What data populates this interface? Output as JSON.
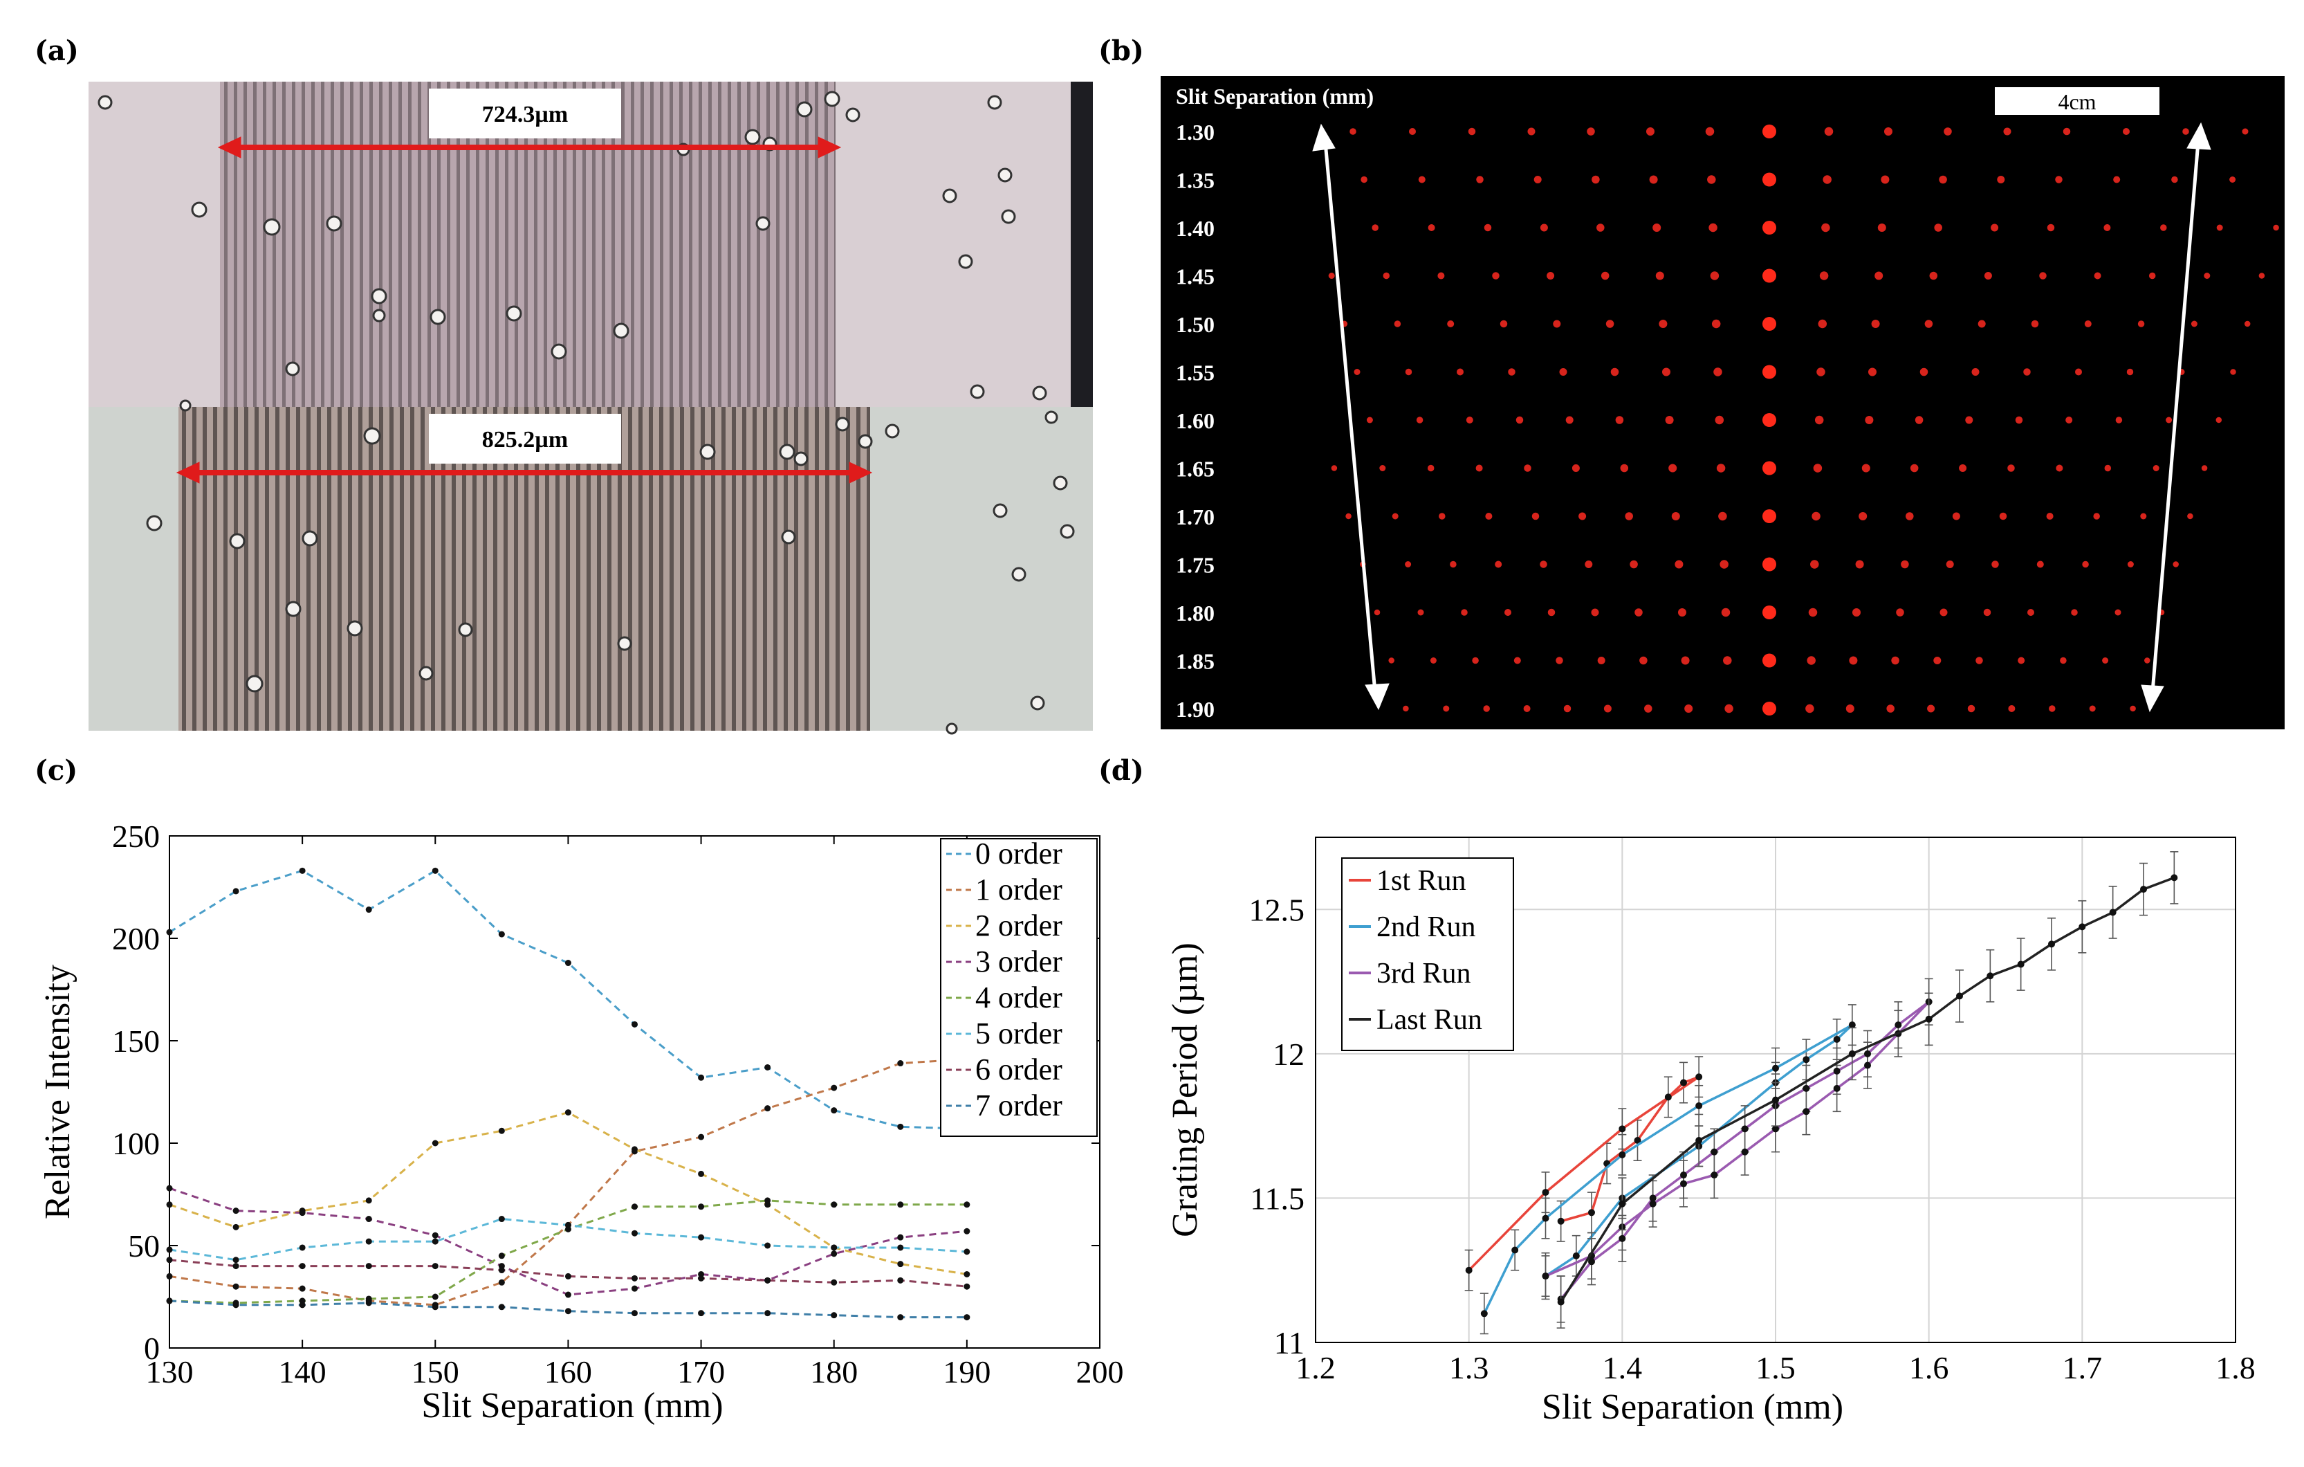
{
  "panels": {
    "a": {
      "label": "(a)",
      "top_measure": "724.3µm",
      "bottom_measure": "825.2µm"
    },
    "b": {
      "label": "(b)",
      "header": "Slit Separation (mm)",
      "scale_bar": "4cm",
      "rows": [
        "1.30",
        "1.35",
        "1.40",
        "1.45",
        "1.50",
        "1.55",
        "1.60",
        "1.65",
        "1.70",
        "1.75",
        "1.80",
        "1.85",
        "1.90"
      ]
    },
    "c": {
      "label": "(c)"
    },
    "d": {
      "label": "(d)"
    }
  },
  "chart_data": [
    {
      "id": "c",
      "type": "line",
      "title": "",
      "xlabel": "Slit Separation (mm)",
      "ylabel": "Relative Intensity",
      "xlim": [
        130,
        200
      ],
      "ylim": [
        0,
        250
      ],
      "xticks": [
        130,
        140,
        150,
        160,
        170,
        180,
        190,
        200
      ],
      "yticks": [
        0,
        50,
        100,
        150,
        200,
        250
      ],
      "x": [
        130,
        135,
        140,
        145,
        150,
        155,
        160,
        165,
        170,
        175,
        180,
        185,
        190
      ],
      "legend_position": "top-right",
      "series": [
        {
          "name": "0 order",
          "color": "#4a9ec9",
          "values": [
            203,
            223,
            233,
            214,
            233,
            202,
            188,
            158,
            132,
            137,
            116,
            108,
            107
          ]
        },
        {
          "name": "1 order",
          "color": "#c0784a",
          "values": [
            35,
            30,
            29,
            23,
            21,
            32,
            60,
            96,
            103,
            117,
            127,
            139,
            141
          ]
        },
        {
          "name": "2 order",
          "color": "#d8b24a",
          "values": [
            70,
            59,
            67,
            72,
            100,
            106,
            115,
            97,
            85,
            70,
            49,
            41,
            36
          ]
        },
        {
          "name": "3 order",
          "color": "#8a3f80",
          "values": [
            78,
            67,
            66,
            63,
            55,
            40,
            26,
            29,
            36,
            33,
            46,
            54,
            57
          ]
        },
        {
          "name": "4 order",
          "color": "#7fa84a",
          "values": [
            23,
            22,
            23,
            24,
            25,
            45,
            58,
            69,
            69,
            72,
            70,
            70,
            70
          ]
        },
        {
          "name": "5 order",
          "color": "#5cb8d8",
          "values": [
            48,
            43,
            49,
            52,
            52,
            63,
            60,
            56,
            54,
            50,
            49,
            49,
            47
          ]
        },
        {
          "name": "6 order",
          "color": "#8a3f58",
          "values": [
            43,
            40,
            40,
            40,
            40,
            38,
            35,
            34,
            34,
            33,
            32,
            33,
            30
          ]
        },
        {
          "name": "7 order",
          "color": "#3f7fa8",
          "values": [
            23,
            21,
            21,
            22,
            20,
            20,
            18,
            17,
            17,
            17,
            16,
            15,
            15
          ]
        }
      ]
    },
    {
      "id": "d",
      "type": "line",
      "title": "",
      "xlabel": "Slit Separation (mm)",
      "ylabel": "Grating Period (µm)",
      "xlim": [
        1.2,
        1.8
      ],
      "ylim": [
        11,
        12.75
      ],
      "xticks": [
        1.2,
        1.3,
        1.4,
        1.5,
        1.6,
        1.7,
        1.8
      ],
      "xtick_labels": [
        "1.2",
        "1.3",
        "1.4",
        "1.5",
        "1.6",
        "1.7",
        "1.8"
      ],
      "yticks": [
        11,
        11.5,
        12,
        12.5
      ],
      "ytick_labels": [
        "11",
        "11.5",
        "12",
        "12.5"
      ],
      "grid": true,
      "legend_position": "top-left",
      "series": [
        {
          "name": "1st Run",
          "color": "#e8443a",
          "error": 0.07,
          "points": [
            [
              1.3,
              11.25
            ],
            [
              1.35,
              11.52
            ],
            [
              1.4,
              11.74
            ],
            [
              1.45,
              11.92
            ],
            [
              1.44,
              11.9
            ],
            [
              1.43,
              11.85
            ],
            [
              1.41,
              11.7
            ],
            [
              1.39,
              11.62
            ],
            [
              1.38,
              11.45
            ],
            [
              1.36,
              11.42
            ]
          ]
        },
        {
          "name": "2nd Run",
          "color": "#3e9fd0",
          "error": 0.07,
          "points": [
            [
              1.31,
              11.1
            ],
            [
              1.33,
              11.32
            ],
            [
              1.35,
              11.43
            ],
            [
              1.4,
              11.65
            ],
            [
              1.45,
              11.82
            ],
            [
              1.5,
              11.95
            ],
            [
              1.55,
              12.1
            ],
            [
              1.54,
              12.05
            ],
            [
              1.52,
              11.98
            ],
            [
              1.5,
              11.9
            ],
            [
              1.45,
              11.68
            ],
            [
              1.4,
              11.5
            ],
            [
              1.37,
              11.3
            ],
            [
              1.35,
              11.23
            ]
          ]
        },
        {
          "name": "3rd Run",
          "color": "#9a5ab0",
          "error": 0.08,
          "points": [
            [
              1.35,
              11.23
            ],
            [
              1.38,
              11.3
            ],
            [
              1.4,
              11.4
            ],
            [
              1.42,
              11.48
            ],
            [
              1.44,
              11.55
            ],
            [
              1.46,
              11.58
            ],
            [
              1.48,
              11.66
            ],
            [
              1.5,
              11.74
            ],
            [
              1.52,
              11.8
            ],
            [
              1.54,
              11.88
            ],
            [
              1.56,
              11.96
            ],
            [
              1.58,
              12.07
            ],
            [
              1.6,
              12.18
            ],
            [
              1.58,
              12.1
            ],
            [
              1.56,
              12.0
            ],
            [
              1.54,
              11.94
            ],
            [
              1.52,
              11.88
            ],
            [
              1.5,
              11.82
            ],
            [
              1.48,
              11.74
            ],
            [
              1.46,
              11.66
            ],
            [
              1.44,
              11.58
            ],
            [
              1.42,
              11.5
            ],
            [
              1.4,
              11.36
            ],
            [
              1.38,
              11.28
            ],
            [
              1.36,
              11.15
            ]
          ]
        },
        {
          "name": "Last Run",
          "color": "#222222",
          "error": 0.09,
          "points": [
            [
              1.36,
              11.14
            ],
            [
              1.4,
              11.48
            ],
            [
              1.45,
              11.7
            ],
            [
              1.5,
              11.84
            ],
            [
              1.55,
              12.0
            ],
            [
              1.6,
              12.12
            ],
            [
              1.62,
              12.2
            ],
            [
              1.64,
              12.27
            ],
            [
              1.66,
              12.31
            ],
            [
              1.68,
              12.38
            ],
            [
              1.7,
              12.44
            ],
            [
              1.72,
              12.49
            ],
            [
              1.74,
              12.57
            ],
            [
              1.76,
              12.61
            ]
          ]
        }
      ]
    }
  ]
}
